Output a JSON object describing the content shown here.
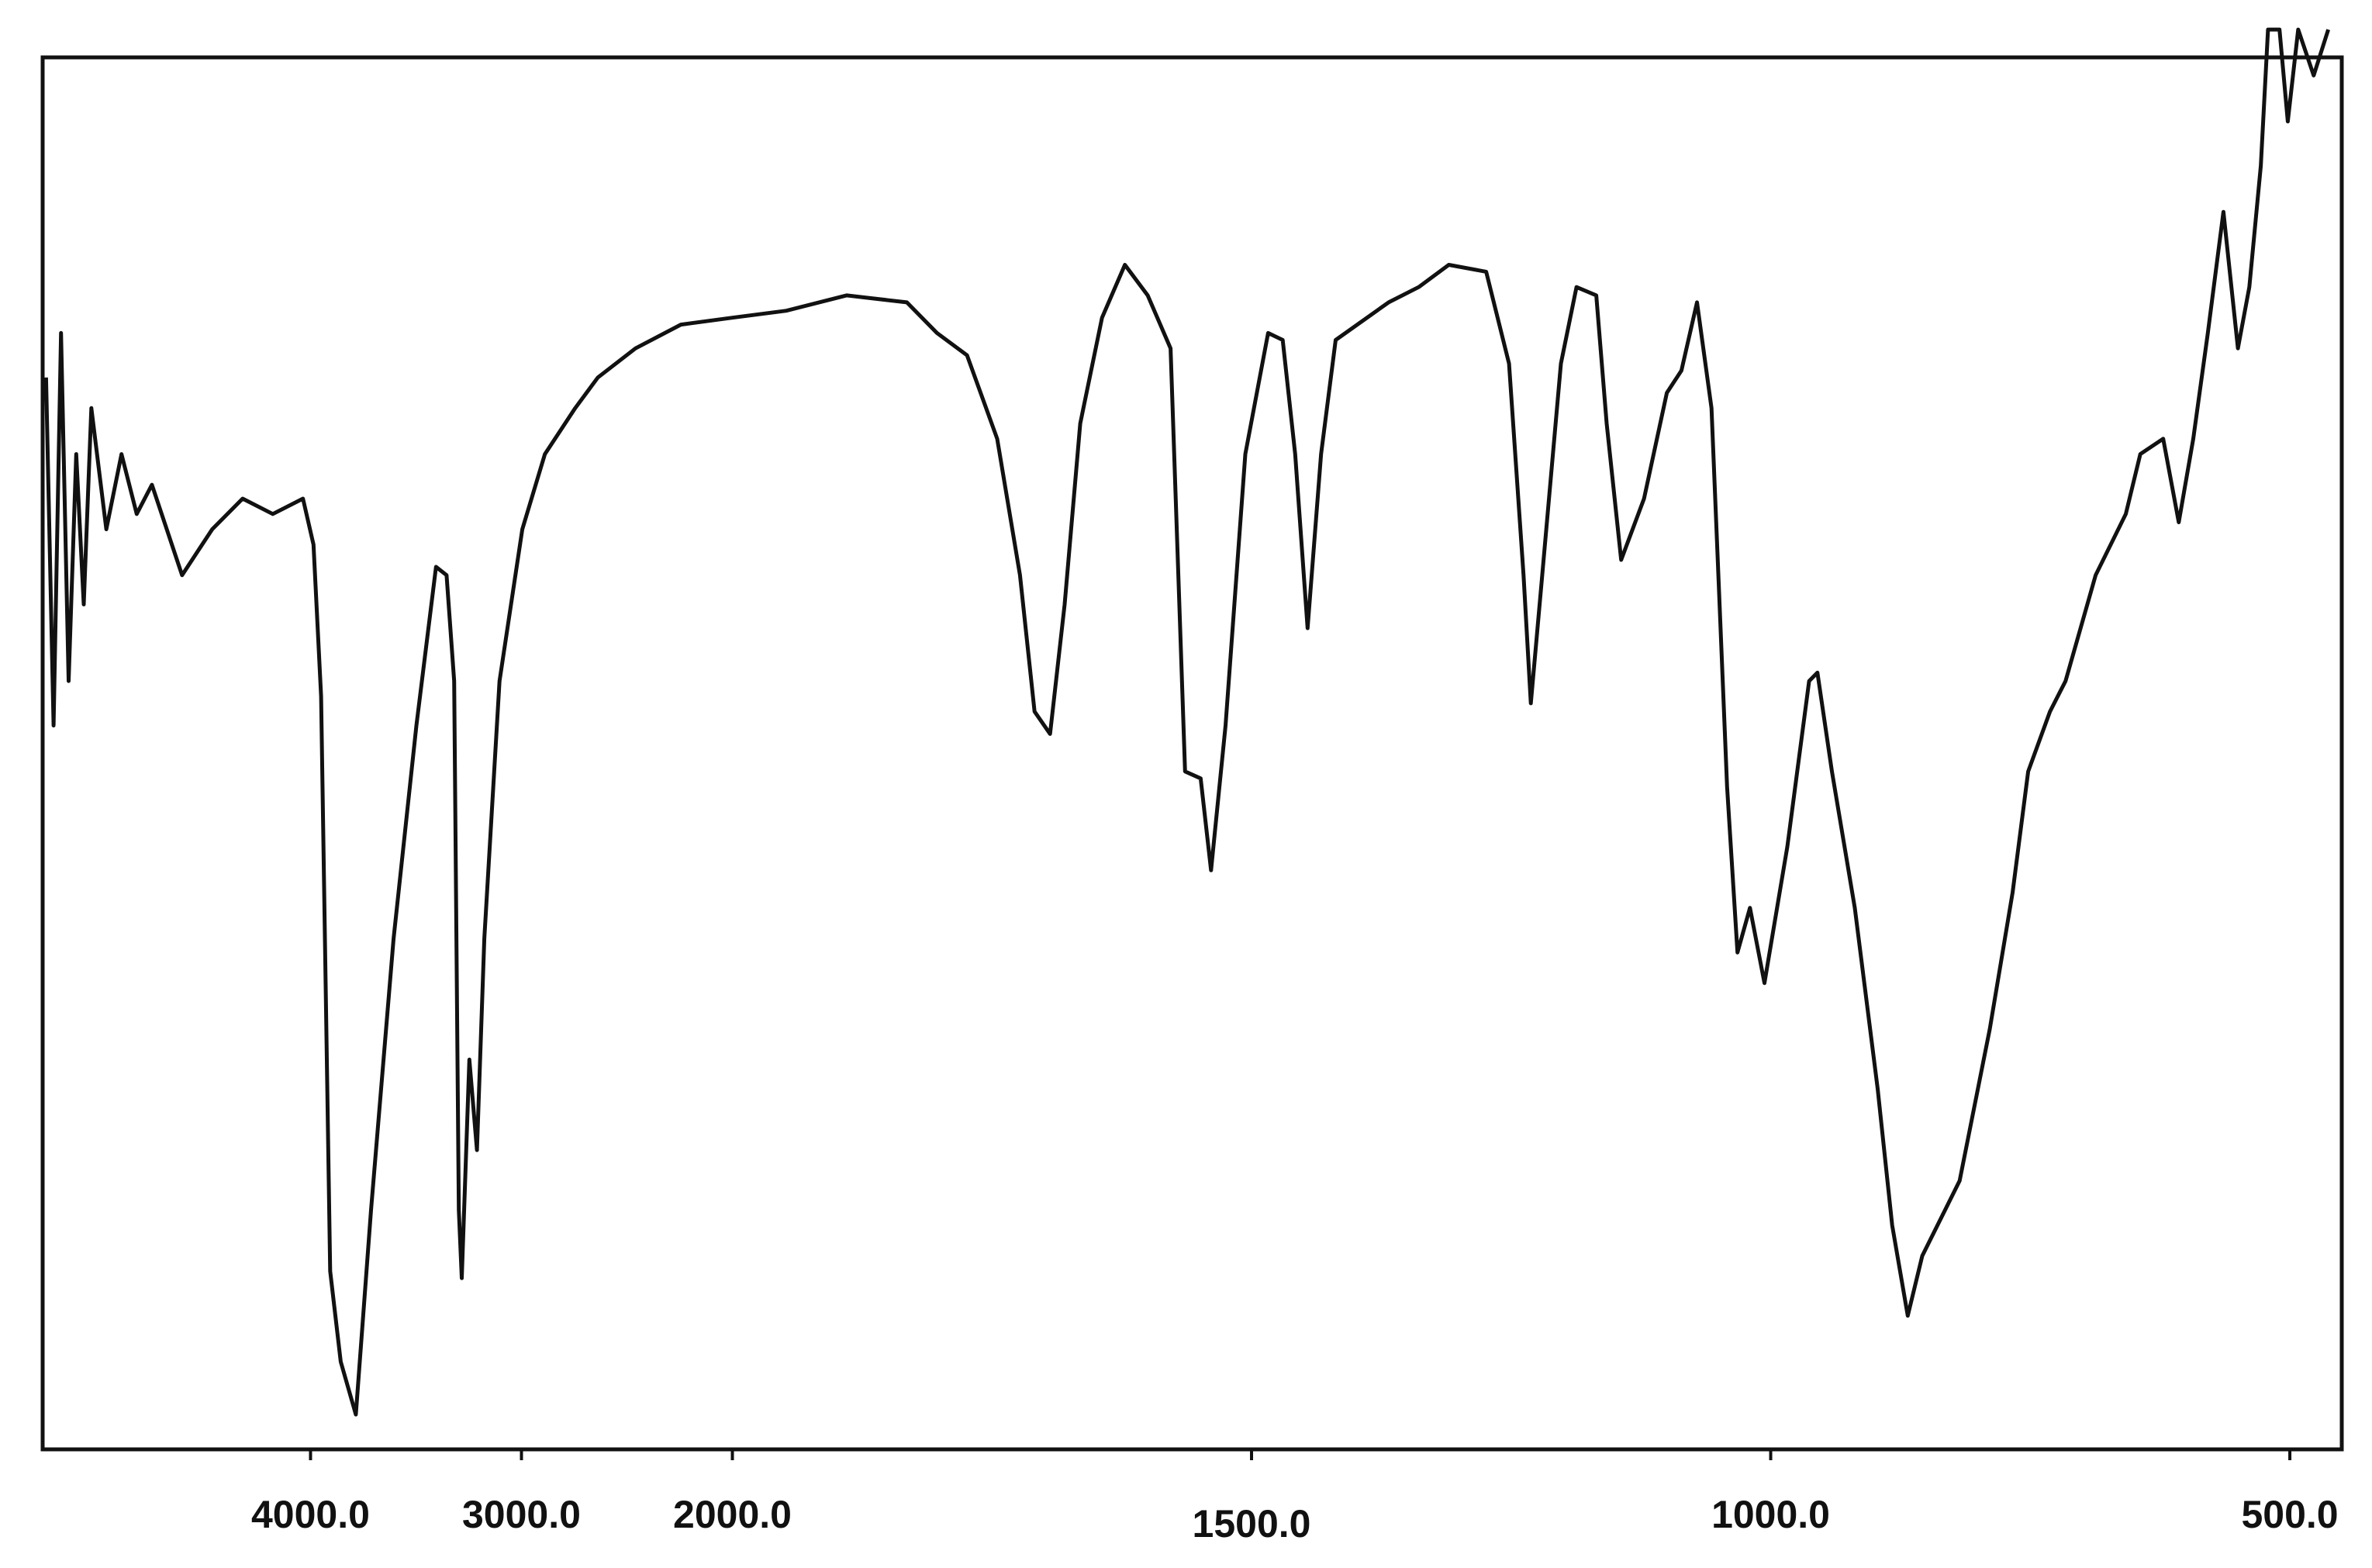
{
  "chart_data": {
    "type": "line",
    "x": [
      5254,
      5218,
      5183,
      5147,
      5111,
      5075,
      5039,
      4968,
      4896,
      4824,
      4752,
      4609,
      4466,
      4322,
      4179,
      4036,
      3986,
      3950,
      3907,
      3857,
      3785,
      3713,
      3606,
      3498,
      3405,
      3355,
      3319,
      3297,
      3283,
      3247,
      3211,
      3176,
      3104,
      2996,
      2889,
      2745,
      2638,
      2459,
      2244,
      2000,
      1948,
      1890,
      1832,
      1803,
      1774,
      1745,
      1723,
      1709,
      1694,
      1680,
      1665,
      1644,
      1622,
      1600,
      1578,
      1564,
      1549,
      1539,
      1525,
      1506,
      1484,
      1470,
      1458,
      1446,
      1433,
      1419,
      1368,
      1339,
      1310,
      1274,
      1252,
      1238,
      1231,
      1220,
      1202,
      1187,
      1168,
      1158,
      1144,
      1122,
      1100,
      1086,
      1071,
      1057,
      1042,
      1032,
      1020,
      1006,
      984,
      963,
      955,
      941,
      919,
      897,
      883,
      868,
      854,
      832,
      818,
      789,
      767,
      752,
      731,
      716,
      687,
      658,
      644,
      622,
      607,
      593,
      579,
      564,
      550,
      539,
      528,
      521,
      510,
      502,
      492,
      477,
      463
    ],
    "series": [
      {
        "color": "#111111",
        "values": [
          77.0,
          52.0,
          80.2,
          55.2,
          71.5,
          60.7,
          74.8,
          66.1,
          71.5,
          67.2,
          69.3,
          62.8,
          66.1,
          68.3,
          67.2,
          68.3,
          65.0,
          54.1,
          12.8,
          6.3,
          2.5,
          17.2,
          36.7,
          52.0,
          63.4,
          62.8,
          55.2,
          17.2,
          12.3,
          28.0,
          21.5,
          36.7,
          55.2,
          66.1,
          71.5,
          74.8,
          77.0,
          79.1,
          80.8,
          81.3,
          81.8,
          82.9,
          82.4,
          80.2,
          78.6,
          72.6,
          62.8,
          53.0,
          51.4,
          60.7,
          73.7,
          81.3,
          85.1,
          82.9,
          79.1,
          48.7,
          48.2,
          41.6,
          52.0,
          71.5,
          80.2,
          79.7,
          71.5,
          59.0,
          71.5,
          79.7,
          82.4,
          83.5,
          85.1,
          84.6,
          78.0,
          62.8,
          53.6,
          62.8,
          78.0,
          83.5,
          82.9,
          73.7,
          63.9,
          68.3,
          75.9,
          77.5,
          82.4,
          74.8,
          47.6,
          35.7,
          38.9,
          33.5,
          43.3,
          55.2,
          55.8,
          48.7,
          38.9,
          25.9,
          16.1,
          9.6,
          13.9,
          17.2,
          19.3,
          30.2,
          40.0,
          48.7,
          53.0,
          55.2,
          62.8,
          67.2,
          71.5,
          72.6,
          66.6,
          72.6,
          80.2,
          88.9,
          79.1,
          83.5,
          92.2,
          102.0,
          102.0,
          95.4,
          102.0,
          98.7,
          102.0
        ]
      }
    ],
    "xlim": [
      5270,
      450
    ],
    "xscale_break": 2000,
    "xticks": [
      {
        "value": 4000,
        "label": "4000.0"
      },
      {
        "value": 3000,
        "label": "3000.0"
      },
      {
        "value": 2000,
        "label": "2000.0"
      },
      {
        "value": 1500,
        "label": "1500.0"
      },
      {
        "value": 1000,
        "label": "1000.0"
      },
      {
        "value": 500,
        "label": "500.0"
      }
    ],
    "ylim": [
      0,
      100
    ]
  }
}
